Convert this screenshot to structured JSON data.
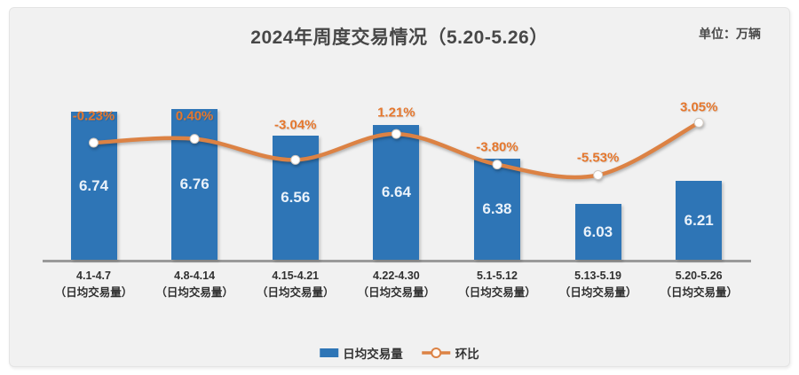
{
  "header": {
    "title": "2024年周度交易情况（5.20-5.26）",
    "unit_label": "单位：万辆"
  },
  "legend": {
    "bar_label": "日均交易量",
    "line_label": "环比"
  },
  "colors": {
    "bar": "#2E75B6",
    "line": "#DC8244",
    "percent_label": "#E5772D",
    "panel_background": "#F1F1F1",
    "axis": "#9A9A9A"
  },
  "chart_data": {
    "type": "bar",
    "title": "2024年周度交易情况（5.20-5.26）",
    "unit_label": "单位：万辆",
    "categories": [
      "4.1-4.7",
      "4.8-4.14",
      "4.15-4.21",
      "4.22-4.30",
      "5.1-5.12",
      "5.13-5.19",
      "5.20-5.26"
    ],
    "category_sublabel": "（日均交易量）",
    "series": [
      {
        "name": "日均交易量",
        "type": "bar",
        "color": "#2E75B6",
        "values": [
          6.74,
          6.76,
          6.56,
          6.64,
          6.38,
          6.03,
          6.21
        ],
        "value_labels": [
          "6.74",
          "6.76",
          "6.56",
          "6.64",
          "6.38",
          "6.03",
          "6.21"
        ]
      },
      {
        "name": "环比",
        "type": "line",
        "color": "#DC8244",
        "values_pct": [
          -0.23,
          0.4,
          -3.04,
          1.21,
          -3.8,
          -5.53,
          3.05
        ],
        "value_labels": [
          "-0.23%",
          "0.40%",
          "-3.04%",
          "1.21%",
          "-3.80%",
          "-5.53%",
          "3.05%"
        ]
      }
    ],
    "axes": {
      "y_primary_implied_min": 5.6,
      "y_axis_visible": false,
      "gridlines": false,
      "legend_position": "bottom"
    }
  }
}
